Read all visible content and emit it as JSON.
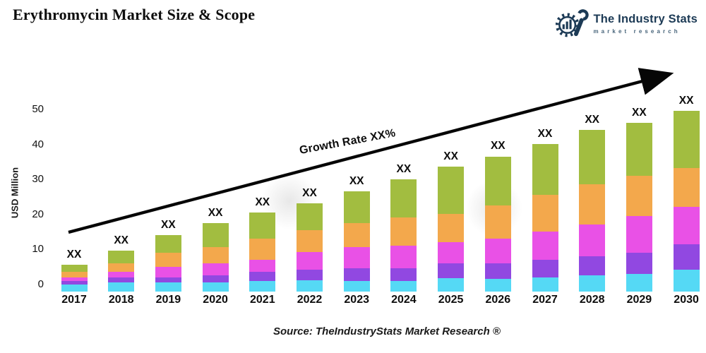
{
  "header": {
    "title": "Erythromycin Market Size & Scope"
  },
  "logo": {
    "name": "The Industry Stats",
    "tagline": "market research",
    "color": "#1c3a55"
  },
  "annotations": {
    "growth_label": "Growth Rate XX%",
    "source": "Source: TheIndustryStats Market Research ®",
    "bar_value_label": "XX"
  },
  "chart_data": {
    "type": "bar",
    "stacked": true,
    "title": "Erythromycin Market Size & Scope",
    "xlabel": "",
    "ylabel": "USD Million",
    "ylim": [
      0,
      50
    ],
    "yticks": [
      0,
      10,
      20,
      30,
      40,
      50
    ],
    "grid": false,
    "legend": false,
    "categories": [
      "2017",
      "2018",
      "2019",
      "2020",
      "2021",
      "2022",
      "2023",
      "2024",
      "2025",
      "2026",
      "2027",
      "2028",
      "2029",
      "2030"
    ],
    "series": [
      {
        "name": "segment-1-bottom",
        "color": "#55d9f5",
        "values": [
          0.5,
          1.0,
          1.0,
          1.0,
          1.5,
          1.7,
          1.5,
          1.5,
          2.3,
          2.0,
          2.5,
          3.0,
          3.5,
          4.6
        ]
      },
      {
        "name": "segment-2",
        "color": "#9148e1",
        "values": [
          1.0,
          1.5,
          1.5,
          2.0,
          2.5,
          3.0,
          3.5,
          3.5,
          4.2,
          4.5,
          5.0,
          5.5,
          6.0,
          7.2
        ]
      },
      {
        "name": "segment-3",
        "color": "#e951e6",
        "values": [
          1.0,
          1.5,
          3.0,
          3.5,
          3.5,
          5.0,
          6.0,
          6.5,
          6.0,
          7.0,
          8.0,
          9.0,
          10.5,
          10.7
        ]
      },
      {
        "name": "segment-4",
        "color": "#f3a84c",
        "values": [
          1.5,
          2.5,
          4.0,
          4.5,
          6.0,
          6.3,
          7.0,
          8.0,
          8.0,
          9.5,
          10.5,
          11.5,
          11.5,
          11.2
        ]
      },
      {
        "name": "segment-5-top",
        "color": "#a2bd40",
        "values": [
          2.0,
          3.5,
          5.0,
          7.0,
          7.5,
          7.5,
          9.0,
          11.0,
          13.5,
          14.0,
          14.5,
          15.5,
          15.0,
          16.3
        ]
      }
    ],
    "totals_estimated": [
      6,
      10,
      14.5,
      18,
      21,
      23.5,
      27,
      30.5,
      34,
      37,
      40.5,
      44.5,
      46.5,
      50
    ],
    "bar_labels": [
      "XX",
      "XX",
      "XX",
      "XX",
      "XX",
      "XX",
      "XX",
      "XX",
      "XX",
      "XX",
      "XX",
      "XX",
      "XX",
      "XX"
    ],
    "annotation": {
      "text": "Growth Rate XX%",
      "shape": "rising-arrow"
    },
    "source": "Source: TheIndustryStats Market Research ®"
  }
}
